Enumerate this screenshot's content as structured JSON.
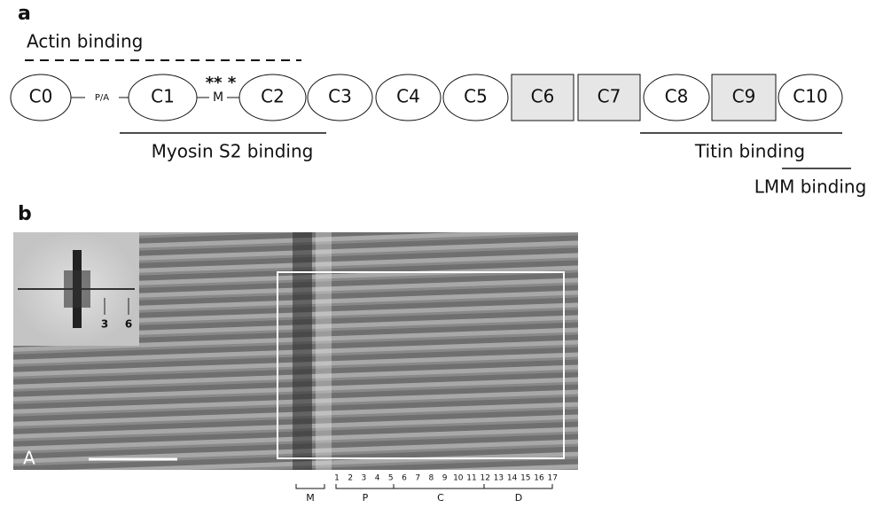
{
  "panel_a": {
    "label": "a",
    "actin_label": "Actin binding",
    "domains": [
      {
        "label": "C0",
        "shape": "ellipse"
      },
      {
        "label": "C1",
        "shape": "ellipse"
      },
      {
        "label": "C2",
        "shape": "ellipse"
      },
      {
        "label": "C3",
        "shape": "ellipse"
      },
      {
        "label": "C4",
        "shape": "ellipse"
      },
      {
        "label": "C5",
        "shape": "ellipse"
      },
      {
        "label": "C6",
        "shape": "rect"
      },
      {
        "label": "C7",
        "shape": "rect"
      },
      {
        "label": "C8",
        "shape": "ellipse"
      },
      {
        "label": "C9",
        "shape": "rect"
      },
      {
        "label": "C10",
        "shape": "ellipse"
      }
    ],
    "linkers": [
      "P/A",
      "M"
    ],
    "asterisks": "** *",
    "myosin_label": "Myosin S2 binding",
    "titin_label": "Titin binding",
    "lmm_label": "LMM binding"
  },
  "panel_b": {
    "label": "b",
    "inset_marks": [
      "3",
      "6"
    ],
    "corner_label": "A",
    "stripe_numbers": [
      "1",
      "2",
      "3",
      "4",
      "5",
      "6",
      "7",
      "8",
      "9",
      "10",
      "11",
      "12",
      "13",
      "14",
      "15",
      "16",
      "17"
    ],
    "regions": [
      "M",
      "P",
      "C",
      "D"
    ]
  }
}
